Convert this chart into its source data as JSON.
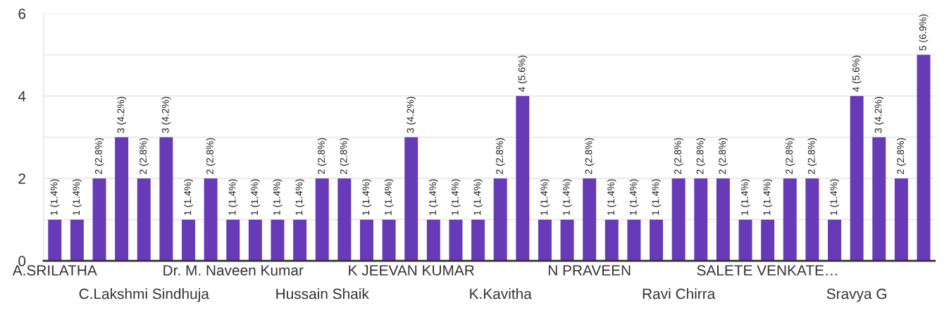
{
  "chart_data": {
    "type": "bar",
    "categories": [
      "A.SRILATHA",
      null,
      null,
      null,
      "C.Lakshmi Sindhuja",
      null,
      null,
      null,
      "Dr. M. Naveen Kumar",
      null,
      null,
      null,
      "Hussain Shaik",
      null,
      null,
      null,
      "K JEEVAN KUMAR",
      null,
      null,
      null,
      "K.Kavitha",
      null,
      null,
      null,
      "N PRAVEEN",
      null,
      null,
      null,
      "Ravi Chirra",
      null,
      null,
      null,
      "SALETE VENKATE…",
      null,
      null,
      null,
      "Sravya G",
      null,
      null,
      null
    ],
    "values": [
      1,
      1,
      2,
      3,
      2,
      3,
      1,
      2,
      1,
      1,
      1,
      1,
      2,
      2,
      1,
      1,
      3,
      1,
      1,
      1,
      2,
      4,
      1,
      1,
      2,
      1,
      1,
      1,
      2,
      2,
      2,
      1,
      1,
      2,
      2,
      1,
      4,
      3,
      2,
      5
    ],
    "color": "#673ab7",
    "value_labels": [
      "1 (1.4%)",
      "1 (1.4%)",
      "2 (2.8%)",
      "3 (4.2%)",
      "2 (2.8%)",
      "3 (4.2%)",
      "1 (1.4%)",
      "2 (2.8%)",
      "1 (1.4%)",
      "1 (1.4%)",
      "1 (1.4%)",
      "1 (1.4%)",
      "2 (2.8%)",
      "2 (2.8%)",
      "1 (1.4%)",
      "1 (1.4%)",
      "3 (4.2%)",
      "1 (1.4%)",
      "1 (1.4%)",
      "1 (1.4%)",
      "2 (2.8%)",
      "4 (5.6%)",
      "1 (1.4%)",
      "1 (1.4%)",
      "2 (2.8%)",
      "1 (1.4%)",
      "1 (1.4%)",
      "1 (1.4%)",
      "2 (2.8%)",
      "2 (2.8%)",
      "2 (2.8%)",
      "1 (1.4%)",
      "1 (1.4%)",
      "2 (2.8%)",
      "2 (2.8%)",
      "1 (1.4%)",
      "4 (5.6%)",
      "3 (4.2%)",
      "2 (2.8%)",
      "5 (6.9%)"
    ],
    "ylim": [
      0,
      6
    ],
    "yticks": [
      0,
      {
        "value": 1,
        "label": null
      },
      2,
      {
        "value": 3,
        "label": null
      },
      4,
      {
        "value": 5,
        "label": null
      },
      6
    ],
    "grid": "y"
  }
}
